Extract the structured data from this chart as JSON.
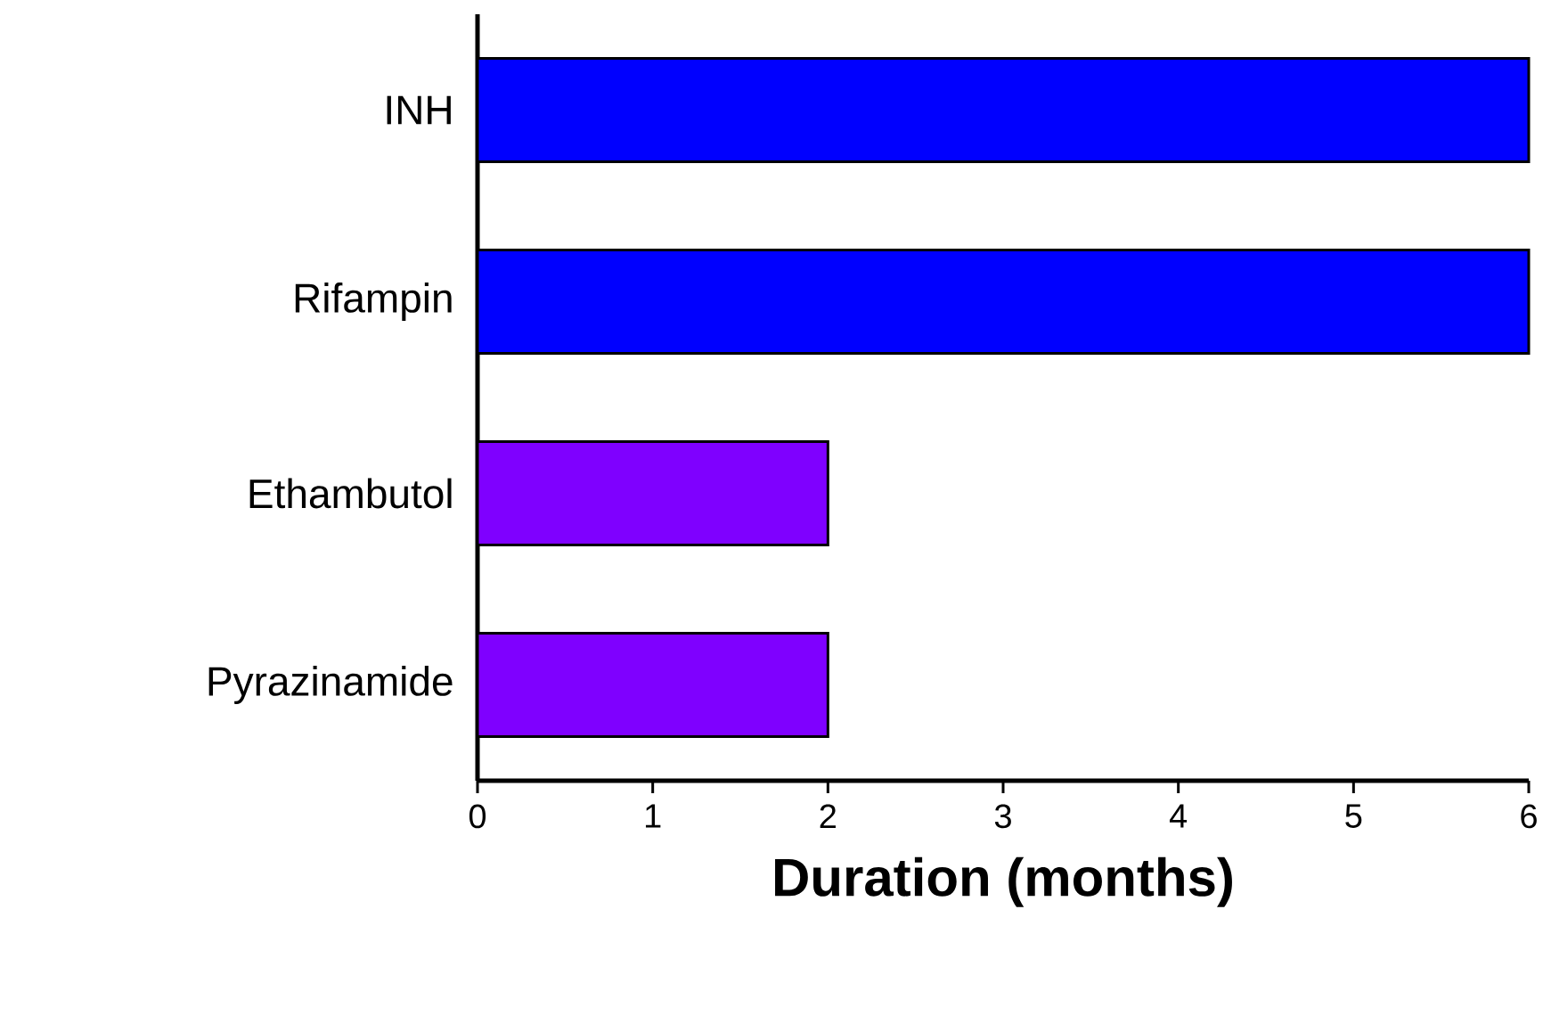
{
  "chart_data": {
    "type": "bar",
    "orientation": "horizontal",
    "xlabel": "Duration (months)",
    "categories": [
      "INH",
      "Rifampin",
      "Ethambutol",
      "Pyrazinamide"
    ],
    "values": [
      6,
      6,
      2,
      2
    ],
    "colors": [
      "#0000ff",
      "#0000ff",
      "#7f00ff",
      "#7f00ff"
    ],
    "xlim": [
      0,
      6
    ],
    "xticks": [
      0,
      1,
      2,
      3,
      4,
      5,
      6
    ],
    "grid": false
  }
}
